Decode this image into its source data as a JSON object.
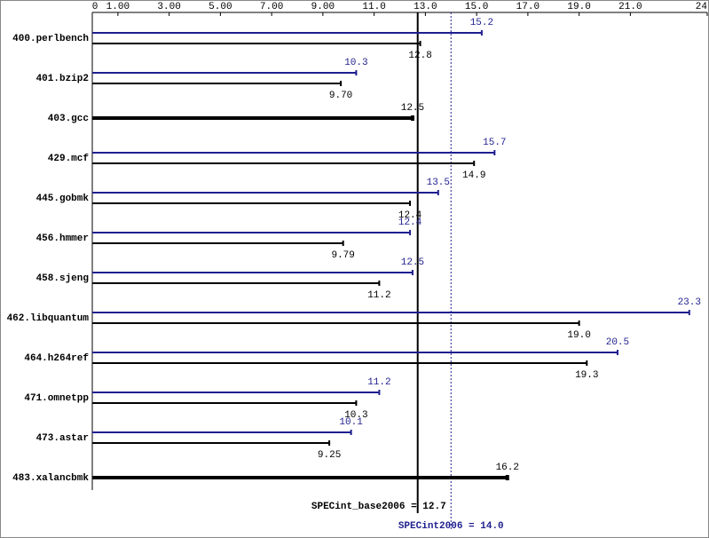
{
  "chart_data": {
    "type": "bar",
    "orientation": "horizontal",
    "categories": [
      "400.perlbench",
      "401.bzip2",
      "403.gcc",
      "429.mcf",
      "445.gobmk",
      "456.hmmer",
      "458.sjeng",
      "462.libquantum",
      "464.h264ref",
      "471.omnetpp",
      "473.astar",
      "483.xalancbmk"
    ],
    "series": [
      {
        "color": "#1f1f8f",
        "values": [
          15.2,
          10.3,
          null,
          15.7,
          13.5,
          12.4,
          12.5,
          23.3,
          20.5,
          11.2,
          10.1,
          null
        ],
        "value_labels": [
          "15.2",
          "10.3",
          null,
          "15.7",
          "13.5",
          "12.4",
          "12.5",
          "23.3",
          "20.5",
          "11.2",
          "10.1",
          null
        ]
      },
      {
        "color": "#000000",
        "values": [
          12.8,
          9.7,
          12.5,
          14.9,
          12.4,
          9.79,
          11.2,
          19.0,
          19.3,
          10.3,
          9.25,
          16.2
        ],
        "value_labels": [
          "12.8",
          "9.70",
          "12.5",
          "14.9",
          "12.4",
          "9.79",
          "11.2",
          "19.0",
          "19.3",
          "10.3",
          "9.25",
          "16.2"
        ]
      }
    ],
    "xlim": [
      0,
      24
    ],
    "xticks": [
      0,
      {
        "value": 1,
        "label": "1.00"
      },
      {
        "value": 3,
        "label": "3.00"
      },
      {
        "value": 5,
        "label": "5.00"
      },
      {
        "value": 7,
        "label": "7.00"
      },
      {
        "value": 9,
        "label": "9.00"
      },
      {
        "value": 11,
        "label": "11.0"
      },
      {
        "value": 13,
        "label": "13.0"
      },
      {
        "value": 15,
        "label": "15.0"
      },
      {
        "value": 17,
        "label": "17.0"
      },
      {
        "value": 19,
        "label": "19.0"
      },
      {
        "value": 21,
        "label": "21.0"
      },
      {
        "value": 24,
        "label": "24.0"
      }
    ],
    "reference_lines": [
      {
        "label": "SPECint_base2006 = 12.7",
        "value": 12.7,
        "color": "#000000",
        "style": "solid"
      },
      {
        "label": "SPECint2006 = 14.0",
        "value": 14.0,
        "color": "#1f1f8f",
        "style": "dotted"
      }
    ]
  }
}
